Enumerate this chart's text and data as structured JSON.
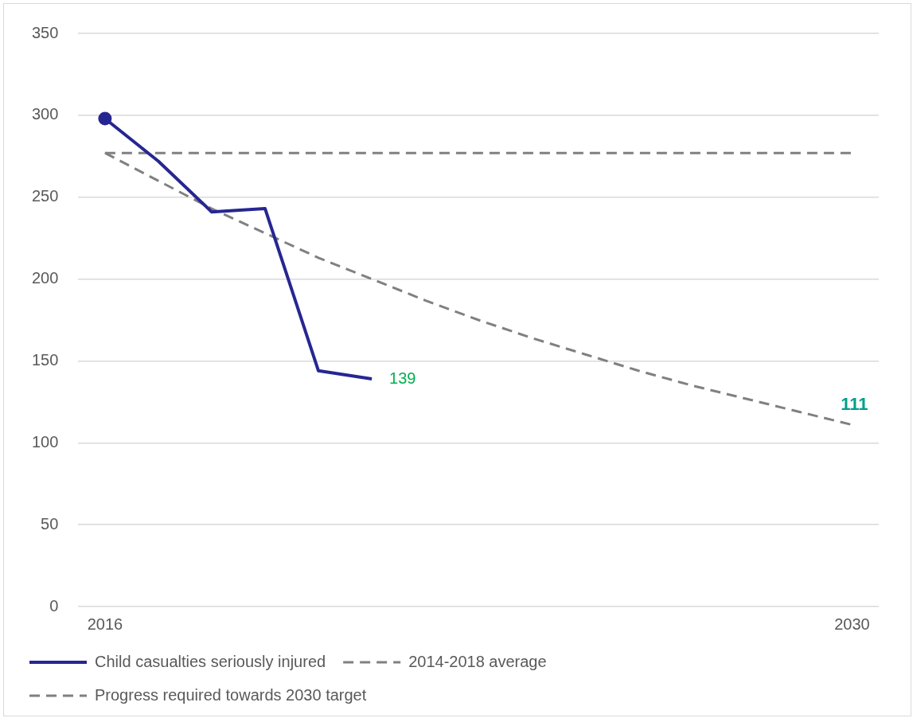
{
  "chart_data": {
    "type": "line",
    "categories": [
      "2016",
      null,
      null,
      null,
      null,
      null,
      null,
      null,
      null,
      null,
      null,
      null,
      null,
      null,
      "2030"
    ],
    "series": [
      {
        "name": "Child casualties seriously injured",
        "color": "#262692",
        "values": [
          298,
          272,
          241,
          243,
          144,
          139,
          null,
          null,
          null,
          null,
          null,
          null,
          null,
          null,
          null
        ],
        "value_labels": [
          null,
          null,
          null,
          null,
          null,
          "139",
          null,
          null,
          null,
          null,
          null,
          null,
          null,
          null,
          null
        ],
        "line_style": "solid"
      },
      {
        "name": "2014-2018 average",
        "color": "#808080",
        "values": [
          277,
          277,
          277,
          277,
          277,
          277,
          277,
          277,
          277,
          277,
          277,
          277,
          277,
          277,
          277
        ],
        "line_style": "dashed"
      },
      {
        "name": "Progress required towards 2030 target",
        "color": "#808080",
        "values": [
          277,
          260,
          243,
          228,
          213,
          200,
          187,
          175,
          164,
          154,
          144,
          135,
          127,
          119,
          111
        ],
        "value_labels": [
          null,
          null,
          null,
          null,
          null,
          null,
          null,
          null,
          null,
          null,
          null,
          null,
          null,
          null,
          "111"
        ],
        "line_style": "dashed"
      },
      {
        "color": "#262692",
        "values": [
          298,
          null,
          null,
          null,
          null,
          null,
          null,
          null,
          null,
          null,
          null,
          null,
          null,
          null,
          null
        ],
        "marker": "circle"
      }
    ],
    "ylim": [
      0,
      350
    ],
    "yticks": [
      0,
      50,
      100,
      150,
      200,
      250,
      300,
      350
    ],
    "grid": "y",
    "legend": "bottom",
    "marker": "none"
  }
}
